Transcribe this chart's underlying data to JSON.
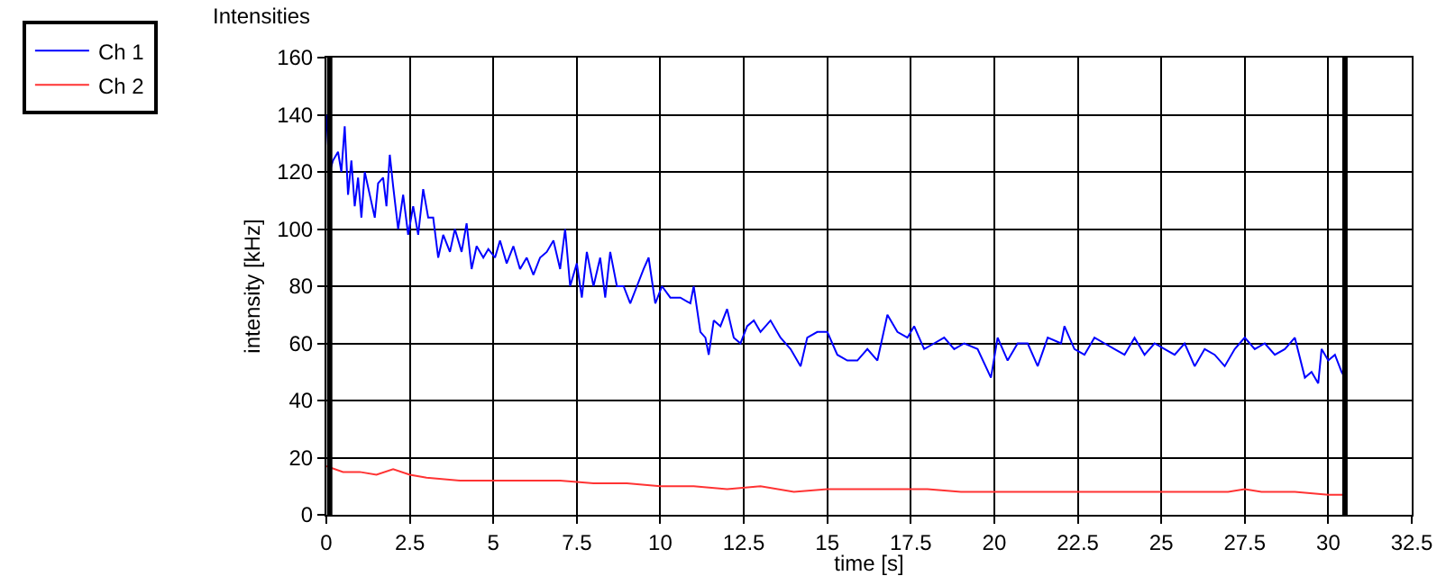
{
  "chart_data": {
    "type": "line",
    "title": "Intensities",
    "xlabel": "time [s]",
    "ylabel": "intensity [kHz]",
    "xlim": [
      0,
      32.5
    ],
    "xticks": [
      0,
      {
        "value": 2.5,
        "label": "2.5"
      },
      5,
      {
        "value": 7.5,
        "label": "7.5"
      },
      10,
      {
        "value": 12.5,
        "label": "12.5"
      },
      15,
      {
        "value": 17.5,
        "label": "17.5"
      },
      20,
      {
        "value": 22.5,
        "label": "22.5"
      },
      25,
      {
        "value": 27.5,
        "label": "27.5"
      },
      30,
      {
        "value": 32.5,
        "label": "32.5"
      }
    ],
    "ylim": [
      0,
      160
    ],
    "yticks": [
      0,
      20,
      40,
      60,
      80,
      100,
      120,
      140,
      160
    ],
    "grid": true,
    "legend": "top left",
    "marker": "none",
    "line_style": "solid",
    "ref_lines": [
      {
        "axis": "x",
        "value": 0.1,
        "color": "#000000"
      },
      {
        "axis": "x",
        "value": 30.5,
        "color": "#000000"
      }
    ],
    "series": [
      {
        "name": "Ch 1",
        "color": "#0000ff",
        "x": [
          0,
          0.1,
          0.2,
          0.35,
          0.45,
          0.55,
          0.65,
          0.75,
          0.85,
          0.95,
          1.05,
          1.15,
          1.3,
          1.45,
          1.55,
          1.7,
          1.8,
          1.9,
          2.0,
          2.15,
          2.3,
          2.45,
          2.6,
          2.75,
          2.9,
          3.05,
          3.2,
          3.35,
          3.5,
          3.7,
          3.85,
          4.05,
          4.2,
          4.35,
          4.5,
          4.7,
          4.85,
          5.05,
          5.2,
          5.4,
          5.6,
          5.8,
          6.0,
          6.2,
          6.4,
          6.6,
          6.8,
          7.0,
          7.15,
          7.3,
          7.5,
          7.65,
          7.8,
          8.0,
          8.2,
          8.35,
          8.5,
          8.7,
          8.9,
          9.1,
          9.3,
          9.5,
          9.65,
          9.85,
          10.05,
          10.3,
          10.6,
          10.9,
          11.0,
          11.2,
          11.35,
          11.45,
          11.6,
          11.8,
          12.0,
          12.2,
          12.4,
          12.6,
          12.8,
          13.0,
          13.3,
          13.6,
          13.9,
          14.2,
          14.4,
          14.7,
          15.0,
          15.3,
          15.6,
          15.9,
          16.2,
          16.5,
          16.8,
          17.1,
          17.4,
          17.6,
          17.9,
          18.2,
          18.5,
          18.8,
          19.1,
          19.5,
          19.9,
          20.1,
          20.4,
          20.7,
          21.0,
          21.3,
          21.6,
          22.0,
          22.1,
          22.4,
          22.7,
          23.0,
          23.3,
          23.6,
          23.9,
          24.2,
          24.5,
          24.8,
          25.1,
          25.4,
          25.7,
          26.0,
          26.3,
          26.6,
          26.9,
          27.2,
          27.5,
          27.8,
          28.1,
          28.4,
          28.7,
          29.0,
          29.3,
          29.5,
          29.7,
          29.8,
          30.0,
          30.2,
          30.4,
          30.5
        ],
        "values": [
          140,
          120,
          124,
          127,
          120,
          136,
          112,
          124,
          108,
          118,
          104,
          120,
          112,
          104,
          116,
          118,
          108,
          126,
          115,
          100,
          112,
          98,
          108,
          98,
          114,
          104,
          104,
          90,
          98,
          92,
          100,
          92,
          102,
          86,
          94,
          90,
          93,
          90,
          96,
          88,
          94,
          86,
          90,
          84,
          90,
          92,
          96,
          86,
          100,
          80,
          88,
          76,
          92,
          80,
          90,
          76,
          92,
          80,
          80,
          74,
          80,
          86,
          90,
          74,
          80,
          76,
          76,
          74,
          80,
          64,
          62,
          56,
          68,
          66,
          72,
          62,
          60,
          66,
          68,
          64,
          68,
          62,
          58,
          52,
          62,
          64,
          64,
          56,
          54,
          54,
          58,
          54,
          70,
          64,
          62,
          66,
          58,
          60,
          62,
          58,
          60,
          58,
          48,
          62,
          54,
          60,
          60,
          52,
          62,
          60,
          66,
          58,
          56,
          62,
          60,
          58,
          56,
          62,
          56,
          60,
          58,
          56,
          60,
          52,
          58,
          56,
          52,
          58,
          62,
          58,
          60,
          56,
          58,
          62,
          48,
          50,
          46,
          58,
          54,
          56,
          50,
          48
        ]
      },
      {
        "name": "Ch 2",
        "color": "#ff3333",
        "x": [
          0,
          0.5,
          1,
          1.5,
          2,
          2.5,
          3,
          4,
          5,
          6,
          7,
          8,
          9,
          10,
          11,
          12,
          13,
          14,
          15,
          16,
          17,
          18,
          19,
          20,
          21,
          22,
          23,
          24,
          25,
          26,
          27,
          27.5,
          28,
          29,
          30,
          30.5
        ],
        "values": [
          17,
          15,
          15,
          14,
          16,
          14,
          13,
          12,
          12,
          12,
          12,
          11,
          11,
          10,
          10,
          9,
          10,
          8,
          9,
          9,
          9,
          9,
          8,
          8,
          8,
          8,
          8,
          8,
          8,
          8,
          8,
          9,
          8,
          8,
          7,
          7
        ]
      }
    ]
  }
}
